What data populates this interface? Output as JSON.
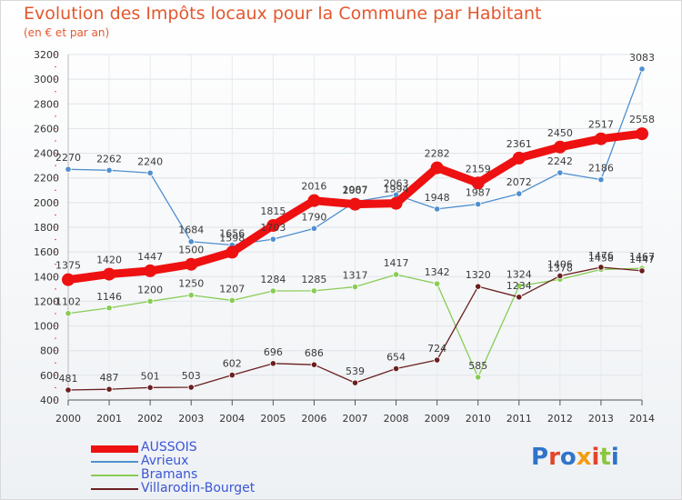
{
  "header": {
    "title": "Evolution des Impôts locaux pour la Commune par Habitant",
    "subtitle": "(en € et par an)"
  },
  "brand": {
    "logo_text": "Proxiti",
    "letter_colors": [
      "#2f74c9",
      "#e2452b",
      "#2f74c9",
      "#f39c12",
      "#e2452b",
      "#8cc63f",
      "#2f74c9"
    ]
  },
  "chart_data": {
    "type": "line",
    "title": "Evolution des Impôts locaux pour la Commune par Habitant",
    "subtitle": "(en € et par an)",
    "xlabel": "",
    "ylabel": "",
    "x": [
      2000,
      2001,
      2002,
      2003,
      2004,
      2005,
      2006,
      2007,
      2008,
      2009,
      2010,
      2011,
      2012,
      2013,
      2014
    ],
    "ylim": [
      400,
      3200
    ],
    "yticks": [
      400,
      600,
      800,
      1000,
      1200,
      1400,
      1600,
      1800,
      2000,
      2200,
      2400,
      2600,
      2800,
      3000,
      3200
    ],
    "grid": true,
    "legend_position": "bottom-left",
    "series": [
      {
        "name": "AUSSOIS",
        "color": "#ee1111",
        "emphasis": true,
        "values": [
          1375,
          1420,
          1447,
          1500,
          1598,
          1815,
          2016,
          1987,
          1994,
          2282,
          2159,
          2361,
          2450,
          2517,
          2558
        ],
        "labels": [
          "1375",
          "1420",
          "1447",
          "1500",
          "1598",
          "1815",
          "2016",
          "1987",
          "1994",
          "2282",
          "2159",
          "2361",
          "2450",
          "2517",
          "2558"
        ]
      },
      {
        "name": "Avrieux",
        "color": "#4f8fd0",
        "emphasis": false,
        "values": [
          2270,
          2262,
          2240,
          1684,
          1656,
          1703,
          1790,
          2007,
          2063,
          1948,
          1987,
          2072,
          2242,
          2186,
          3083
        ],
        "labels": [
          "2270",
          "2262",
          "2240",
          "1684",
          "1656",
          "1703",
          "1790",
          "2007",
          "2063",
          "1948",
          "1987",
          "2072",
          "2242",
          "2186",
          "3083"
        ]
      },
      {
        "name": "Bramans",
        "color": "#88cc55",
        "emphasis": false,
        "values": [
          1102,
          1146,
          1200,
          1250,
          1207,
          1284,
          1285,
          1317,
          1417,
          1342,
          585,
          1324,
          1378,
          1458,
          1467
        ],
        "labels": [
          "1102",
          "1146",
          "1200",
          "1250",
          "1207",
          "1284",
          "1285",
          "1317",
          "1417",
          "1342",
          "585",
          "1324",
          "1378",
          "1458",
          "1467"
        ]
      },
      {
        "name": "Villarodin-Bourget",
        "color": "#6b1f1f",
        "emphasis": false,
        "values": [
          481,
          487,
          501,
          503,
          602,
          696,
          686,
          539,
          654,
          724,
          1320,
          1234,
          1406,
          1476,
          1447
        ],
        "labels": [
          "481",
          "487",
          "501",
          "503",
          "602",
          "696",
          "686",
          "539",
          "654",
          "724",
          "1320",
          "1234",
          "1406",
          "1476",
          "1447"
        ]
      }
    ]
  }
}
